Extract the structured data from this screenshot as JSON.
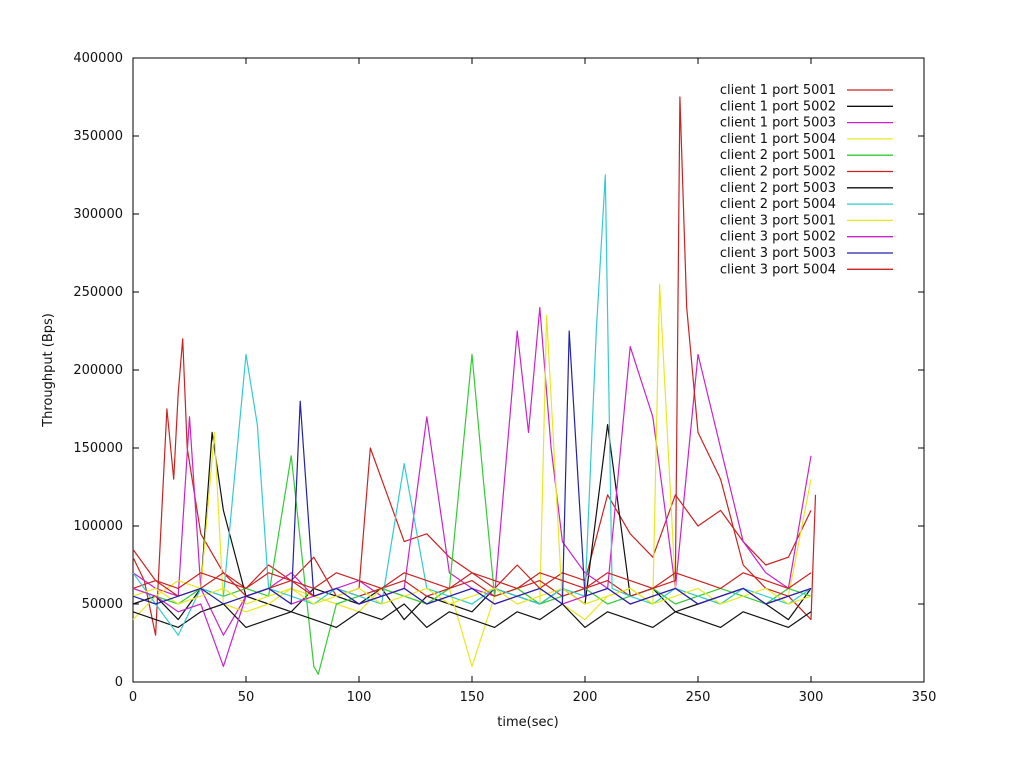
{
  "chart_data": {
    "type": "line",
    "title": "",
    "xlabel": "time(sec)",
    "ylabel": "Throughput (Bps)",
    "xlim": [
      0,
      350
    ],
    "ylim": [
      0,
      400000
    ],
    "x_ticks": [
      0,
      50,
      100,
      150,
      200,
      250,
      300,
      350
    ],
    "y_ticks": [
      0,
      50000,
      100000,
      150000,
      200000,
      250000,
      300000,
      350000,
      400000
    ],
    "x_tick_labels": [
      "0",
      "50",
      "100",
      "150",
      "200",
      "250",
      "300",
      "350"
    ],
    "y_tick_labels": [
      "0",
      "50000",
      "100000",
      "150000",
      "200000",
      "250000",
      "300000",
      "350000",
      "400000"
    ],
    "grid": false,
    "legend_position": "top-right",
    "series": [
      {
        "name": "client 1 port  5001",
        "color": "#cc2222",
        "x": [
          0,
          5,
          10,
          15,
          18,
          20,
          22,
          24,
          30,
          40,
          50,
          60,
          70,
          80,
          90,
          100,
          105,
          110,
          120,
          130,
          140,
          150,
          160,
          170,
          180,
          190,
          200,
          210,
          220,
          230,
          240,
          250,
          260,
          270,
          280,
          290,
          300
        ],
        "y": [
          80000,
          65000,
          30000,
          175000,
          130000,
          185000,
          220000,
          150000,
          95000,
          70000,
          60000,
          75000,
          65000,
          80000,
          55000,
          60000,
          150000,
          130000,
          90000,
          95000,
          80000,
          70000,
          60000,
          75000,
          60000,
          70000,
          65000,
          120000,
          95000,
          80000,
          120000,
          100000,
          110000,
          90000,
          75000,
          80000,
          110000
        ]
      },
      {
        "name": "client 1 port  5002",
        "color": "#111111",
        "x": [
          0,
          10,
          20,
          30,
          35,
          40,
          50,
          60,
          70,
          80,
          90,
          100,
          110,
          120,
          130,
          140,
          150,
          160,
          170,
          180,
          190,
          200,
          210,
          220,
          230,
          240,
          250,
          260,
          270,
          280,
          290,
          300
        ],
        "y": [
          50000,
          55000,
          40000,
          60000,
          160000,
          110000,
          55000,
          50000,
          45000,
          60000,
          55000,
          50000,
          60000,
          40000,
          55000,
          50000,
          45000,
          60000,
          55000,
          50000,
          60000,
          50000,
          165000,
          55000,
          60000,
          45000,
          50000,
          55000,
          60000,
          50000,
          40000,
          60000
        ]
      },
      {
        "name": "client 1 port  5003",
        "color": "#cc22cc",
        "x": [
          0,
          10,
          20,
          25,
          30,
          40,
          50,
          60,
          70,
          80,
          90,
          100,
          110,
          120,
          130,
          140,
          150,
          160,
          170,
          175,
          180,
          185,
          190,
          200,
          210,
          220,
          230,
          240,
          250,
          260,
          270,
          280,
          290,
          300
        ],
        "y": [
          70000,
          60000,
          55000,
          170000,
          60000,
          30000,
          55000,
          60000,
          70000,
          55000,
          60000,
          65000,
          55000,
          60000,
          170000,
          70000,
          60000,
          55000,
          225000,
          160000,
          240000,
          150000,
          90000,
          70000,
          60000,
          215000,
          170000,
          60000,
          210000,
          150000,
          90000,
          70000,
          60000,
          145000
        ]
      },
      {
        "name": "client 1 port  5004",
        "color": "#e8e820",
        "x": [
          0,
          10,
          20,
          30,
          36,
          40,
          50,
          60,
          70,
          80,
          90,
          100,
          110,
          120,
          130,
          140,
          150,
          160,
          170,
          180,
          183,
          190,
          200,
          210,
          220,
          230,
          233,
          240,
          250,
          260,
          270,
          280,
          290,
          300
        ],
        "y": [
          40000,
          55000,
          65000,
          60000,
          160000,
          50000,
          45000,
          50000,
          60000,
          55000,
          50000,
          45000,
          60000,
          55000,
          50000,
          60000,
          10000,
          55000,
          60000,
          50000,
          235000,
          50000,
          40000,
          55000,
          60000,
          50000,
          255000,
          60000,
          55000,
          50000,
          60000,
          50000,
          55000,
          130000
        ]
      },
      {
        "name": "client 2 port  5001",
        "color": "#33cc33",
        "x": [
          0,
          10,
          20,
          30,
          40,
          50,
          60,
          70,
          80,
          82,
          90,
          100,
          110,
          120,
          130,
          140,
          150,
          155,
          160,
          170,
          180,
          190,
          200,
          210,
          220,
          230,
          240,
          250,
          260,
          270,
          280,
          290,
          300
        ],
        "y": [
          60000,
          55000,
          50000,
          60000,
          55000,
          60000,
          55000,
          145000,
          10000,
          5000,
          50000,
          55000,
          60000,
          55000,
          50000,
          60000,
          210000,
          130000,
          55000,
          60000,
          50000,
          55000,
          60000,
          50000,
          55000,
          60000,
          50000,
          55000,
          60000,
          55000,
          50000,
          60000,
          55000
        ]
      },
      {
        "name": "client 2 port  5002",
        "color": "#cc2222",
        "x": [
          0,
          10,
          20,
          30,
          40,
          50,
          60,
          70,
          80,
          90,
          100,
          110,
          120,
          130,
          140,
          150,
          160,
          170,
          180,
          190,
          200,
          210,
          220,
          230,
          240,
          242,
          245,
          250,
          260,
          270,
          280,
          290,
          300,
          302
        ],
        "y": [
          60000,
          65000,
          55000,
          60000,
          70000,
          55000,
          60000,
          65000,
          55000,
          60000,
          55000,
          60000,
          65000,
          55000,
          60000,
          65000,
          55000,
          60000,
          65000,
          55000,
          60000,
          65000,
          55000,
          60000,
          65000,
          375000,
          240000,
          160000,
          130000,
          75000,
          60000,
          55000,
          40000,
          120000
        ]
      },
      {
        "name": "client 2 port  5003",
        "color": "#111111",
        "x": [
          0,
          10,
          20,
          30,
          40,
          50,
          60,
          70,
          80,
          90,
          100,
          110,
          120,
          130,
          140,
          150,
          160,
          170,
          180,
          190,
          200,
          210,
          220,
          230,
          240,
          250,
          260,
          270,
          280,
          290,
          300
        ],
        "y": [
          45000,
          40000,
          35000,
          45000,
          50000,
          35000,
          40000,
          45000,
          40000,
          35000,
          45000,
          40000,
          50000,
          35000,
          45000,
          40000,
          35000,
          45000,
          40000,
          50000,
          35000,
          45000,
          40000,
          35000,
          45000,
          40000,
          35000,
          45000,
          40000,
          35000,
          45000
        ]
      },
      {
        "name": "client 2 port  5004",
        "color": "#33cccc",
        "x": [
          0,
          10,
          20,
          30,
          40,
          50,
          55,
          60,
          70,
          80,
          90,
          100,
          110,
          120,
          130,
          140,
          150,
          160,
          170,
          180,
          190,
          200,
          205,
          209,
          212,
          220,
          230,
          240,
          250,
          260,
          270,
          280,
          290,
          300
        ],
        "y": [
          70000,
          50000,
          30000,
          60000,
          55000,
          210000,
          165000,
          60000,
          55000,
          50000,
          60000,
          55000,
          50000,
          140000,
          60000,
          55000,
          50000,
          60000,
          55000,
          50000,
          60000,
          55000,
          225000,
          325000,
          60000,
          55000,
          50000,
          60000,
          55000,
          50000,
          60000,
          55000,
          50000,
          60000
        ]
      },
      {
        "name": "client 3 port  5001",
        "color": "#e8e820",
        "x": [
          0,
          10,
          20,
          30,
          40,
          50,
          60,
          70,
          80,
          90,
          100,
          110,
          120,
          130,
          140,
          150,
          160,
          170,
          180,
          190,
          200,
          210,
          220,
          230,
          240,
          250,
          260,
          270,
          280,
          290,
          300
        ],
        "y": [
          55000,
          60000,
          50000,
          55000,
          60000,
          50000,
          55000,
          60000,
          50000,
          55000,
          60000,
          50000,
          55000,
          60000,
          50000,
          55000,
          60000,
          50000,
          55000,
          60000,
          50000,
          55000,
          60000,
          50000,
          55000,
          60000,
          50000,
          55000,
          60000,
          50000,
          55000
        ]
      },
      {
        "name": "client 3 port  5002",
        "color": "#cc22cc",
        "x": [
          0,
          10,
          20,
          30,
          40,
          50,
          60,
          70,
          80,
          90,
          100,
          110,
          120,
          130,
          140,
          150,
          160,
          170,
          180,
          190,
          200,
          210,
          220,
          230,
          240,
          250,
          260,
          270,
          280,
          290,
          300
        ],
        "y": [
          60000,
          55000,
          45000,
          50000,
          10000,
          55000,
          60000,
          50000,
          55000,
          60000,
          50000,
          55000,
          60000,
          50000,
          55000,
          60000,
          50000,
          55000,
          60000,
          50000,
          55000,
          60000,
          50000,
          55000,
          60000,
          50000,
          55000,
          60000,
          50000,
          55000,
          60000
        ]
      },
      {
        "name": "client 3 port  5003",
        "color": "#2222aa",
        "x": [
          0,
          10,
          20,
          30,
          40,
          50,
          60,
          70,
          74,
          80,
          90,
          100,
          110,
          120,
          130,
          140,
          150,
          160,
          170,
          180,
          190,
          193,
          200,
          210,
          220,
          230,
          240,
          250,
          260,
          270,
          280,
          290,
          300
        ],
        "y": [
          55000,
          50000,
          55000,
          60000,
          50000,
          55000,
          60000,
          50000,
          180000,
          55000,
          60000,
          50000,
          55000,
          60000,
          50000,
          55000,
          60000,
          50000,
          55000,
          60000,
          50000,
          225000,
          55000,
          60000,
          50000,
          55000,
          60000,
          50000,
          55000,
          60000,
          50000,
          55000,
          60000
        ]
      },
      {
        "name": "client 3 port  5004",
        "color": "#cc2222",
        "x": [
          0,
          10,
          20,
          30,
          40,
          50,
          60,
          70,
          80,
          90,
          100,
          110,
          120,
          130,
          140,
          150,
          160,
          170,
          180,
          190,
          200,
          210,
          220,
          230,
          240,
          250,
          260,
          270,
          280,
          290,
          300
        ],
        "y": [
          85000,
          65000,
          60000,
          70000,
          65000,
          60000,
          70000,
          65000,
          60000,
          70000,
          65000,
          60000,
          70000,
          65000,
          60000,
          70000,
          65000,
          60000,
          70000,
          65000,
          60000,
          70000,
          65000,
          60000,
          70000,
          65000,
          60000,
          70000,
          65000,
          60000,
          70000
        ]
      }
    ]
  }
}
